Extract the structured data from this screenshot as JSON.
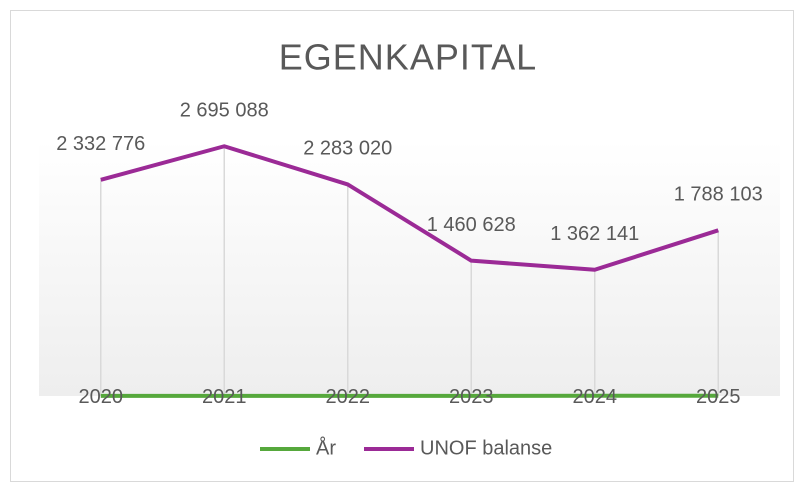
{
  "chart_data": {
    "type": "line",
    "title": "EGENKAPITAL",
    "categories": [
      null,
      null,
      null,
      null,
      null,
      null
    ],
    "series": [
      {
        "name": "År",
        "color": "#56a83c",
        "values": [
          2020,
          2021,
          2022,
          2023,
          2024,
          2025
        ]
      },
      {
        "name": "UNOF balanse",
        "color": "#9b2a96",
        "values": [
          2332776,
          2695088,
          2283020,
          1460628,
          1362141,
          1788103
        ],
        "value_labels": [
          "2 332 776",
          "2 695 088",
          "2 283 020",
          "1 460 628",
          "1 362 141",
          "1 788 103"
        ]
      }
    ],
    "ylim": [
      0,
      3000000
    ],
    "legend": "bottom",
    "drop_lines": true
  }
}
